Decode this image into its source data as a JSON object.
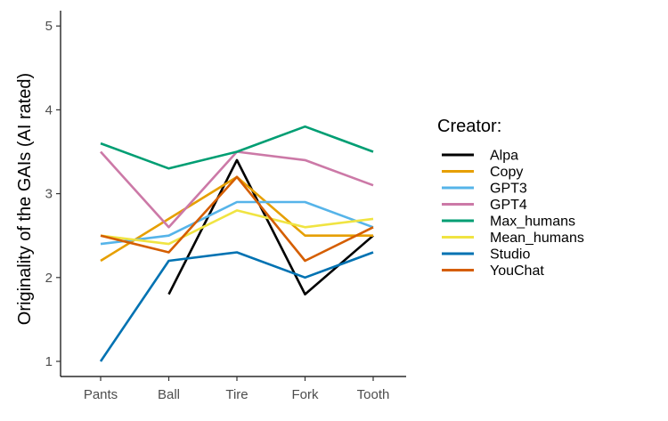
{
  "chart_data": {
    "type": "line",
    "title": "",
    "xlabel": "",
    "ylabel": "Originality of the GAIs (AI rated)",
    "categories": [
      "Pants",
      "Ball",
      "Tire",
      "Fork",
      "Tooth"
    ],
    "y_ticks": [
      1,
      2,
      3,
      4,
      5
    ],
    "ylim": [
      0.9,
      5.2
    ],
    "grid": false,
    "legend": {
      "title": "Creator:",
      "placement": "right"
    },
    "series": [
      {
        "name": "Alpa",
        "color": "#000000",
        "values": [
          null,
          1.8,
          3.4,
          1.8,
          2.5
        ]
      },
      {
        "name": "Copy",
        "color": "#E69F00",
        "values": [
          2.2,
          2.7,
          3.2,
          2.5,
          2.5
        ]
      },
      {
        "name": "GPT3",
        "color": "#56B4E9",
        "values": [
          2.4,
          2.5,
          2.9,
          2.9,
          2.6
        ]
      },
      {
        "name": "GPT4",
        "color": "#CC79A7",
        "values": [
          3.5,
          2.6,
          3.5,
          3.4,
          3.1
        ]
      },
      {
        "name": "Max_humans",
        "color": "#009E73",
        "values": [
          3.6,
          3.3,
          3.5,
          3.8,
          3.5
        ]
      },
      {
        "name": "Mean_humans",
        "color": "#F0E442",
        "values": [
          2.5,
          2.4,
          2.8,
          2.6,
          2.7
        ]
      },
      {
        "name": "Studio",
        "color": "#0072B2",
        "values": [
          1.0,
          2.2,
          2.3,
          2.0,
          2.3
        ]
      },
      {
        "name": "YouChat",
        "color": "#D55E00",
        "values": [
          2.5,
          2.3,
          3.2,
          2.2,
          2.6
        ]
      }
    ]
  }
}
